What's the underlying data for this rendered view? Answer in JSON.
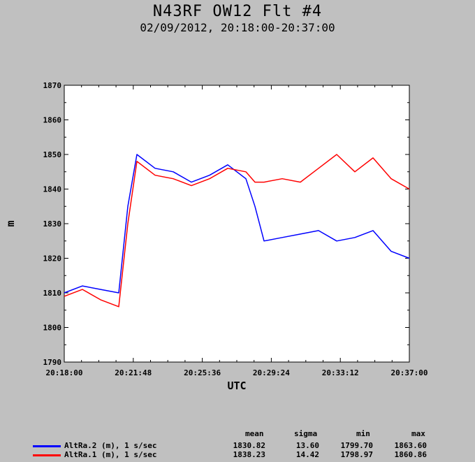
{
  "chart_data": {
    "type": "line",
    "title": "N43RF OW12 Flt #4",
    "subtitle": "02/09/2012, 20:18:00-20:37:00",
    "xlabel": "UTC",
    "ylabel": "m",
    "ylim": [
      1790,
      1870
    ],
    "yticks": [
      "1790",
      "1800",
      "1810",
      "1820",
      "1830",
      "1840",
      "1850",
      "1860",
      "1870"
    ],
    "xlim": [
      "20:18:00",
      "20:37:00"
    ],
    "xticks": [
      "20:18:00",
      "20:21:48",
      "20:25:36",
      "20:29:24",
      "20:33:12",
      "20:37:00"
    ],
    "grid": false,
    "series": [
      {
        "name": "AltRa.2 (m), 1 s/sec",
        "color": "#0000ff",
        "x": [
          "20:18:00",
          "20:19:00",
          "20:20:00",
          "20:21:00",
          "20:21:30",
          "20:22:00",
          "20:23:00",
          "20:24:00",
          "20:25:00",
          "20:26:00",
          "20:27:00",
          "20:28:00",
          "20:28:30",
          "20:29:00",
          "20:30:00",
          "20:31:00",
          "20:32:00",
          "20:33:00",
          "20:34:00",
          "20:35:00",
          "20:36:00",
          "20:37:00"
        ],
        "values": [
          1810,
          1812,
          1811,
          1810,
          1835,
          1850,
          1846,
          1845,
          1842,
          1844,
          1847,
          1843,
          1835,
          1825,
          1826,
          1827,
          1828,
          1825,
          1826,
          1828,
          1822,
          1820
        ]
      },
      {
        "name": "AltRa.1 (m), 1 s/sec",
        "color": "#ff0000",
        "x": [
          "20:18:00",
          "20:19:00",
          "20:20:00",
          "20:21:00",
          "20:21:30",
          "20:22:00",
          "20:23:00",
          "20:24:00",
          "20:25:00",
          "20:26:00",
          "20:27:00",
          "20:28:00",
          "20:28:30",
          "20:29:00",
          "20:30:00",
          "20:31:00",
          "20:32:00",
          "20:33:00",
          "20:34:00",
          "20:35:00",
          "20:36:00",
          "20:37:00"
        ],
        "values": [
          1809,
          1811,
          1808,
          1806,
          1830,
          1848,
          1844,
          1843,
          1841,
          1843,
          1846,
          1845,
          1842,
          1842,
          1843,
          1842,
          1846,
          1850,
          1845,
          1849,
          1843,
          1840
        ]
      }
    ],
    "stats": {
      "headers": [
        "mean",
        "sigma",
        "min",
        "max"
      ],
      "rows": [
        {
          "label": "AltRa.2 (m), 1 s/sec",
          "color": "#0000ff",
          "mean": "1830.82",
          "sigma": "13.60",
          "min": "1799.70",
          "max": "1863.60"
        },
        {
          "label": "AltRa.1 (m), 1 s/sec",
          "color": "#ff0000",
          "mean": "1838.23",
          "sigma": "14.42",
          "min": "1798.97",
          "max": "1860.86"
        }
      ]
    }
  }
}
